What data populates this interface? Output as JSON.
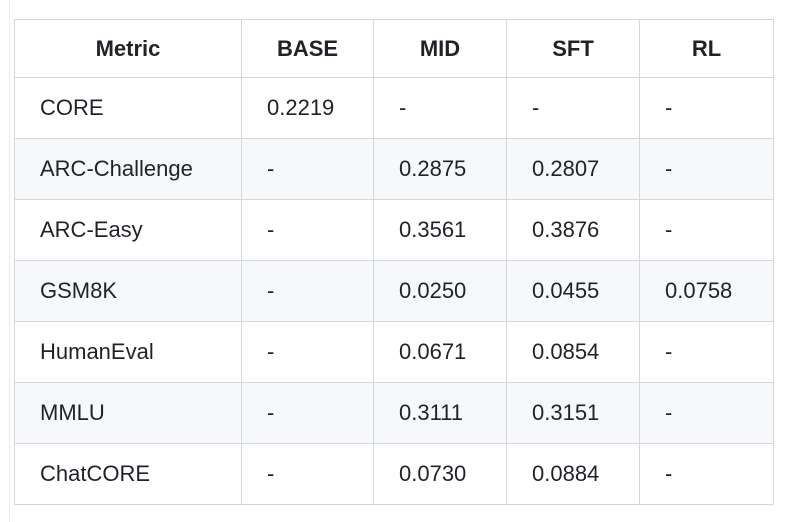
{
  "colors": {
    "background": "#ffffff",
    "border": "#d4d8dc",
    "stripe_row": "#f6f8fa",
    "text": "#1f2328"
  },
  "chart_data": {
    "type": "table",
    "title": "",
    "columns": [
      "Metric",
      "BASE",
      "MID",
      "SFT",
      "RL"
    ],
    "rows": [
      {
        "metric": "CORE",
        "values": [
          "0.2219",
          "-",
          "-",
          "-"
        ]
      },
      {
        "metric": "ARC-Challenge",
        "values": [
          "-",
          "0.2875",
          "0.2807",
          "-"
        ]
      },
      {
        "metric": "ARC-Easy",
        "values": [
          "-",
          "0.3561",
          "0.3876",
          "-"
        ]
      },
      {
        "metric": "GSM8K",
        "values": [
          "-",
          "0.0250",
          "0.0455",
          "0.0758"
        ]
      },
      {
        "metric": "HumanEval",
        "values": [
          "-",
          "0.0671",
          "0.0854",
          "-"
        ]
      },
      {
        "metric": "MMLU",
        "values": [
          "-",
          "0.3111",
          "0.3151",
          "-"
        ]
      },
      {
        "metric": "ChatCORE",
        "values": [
          "-",
          "0.0730",
          "0.0884",
          "-"
        ]
      }
    ]
  }
}
